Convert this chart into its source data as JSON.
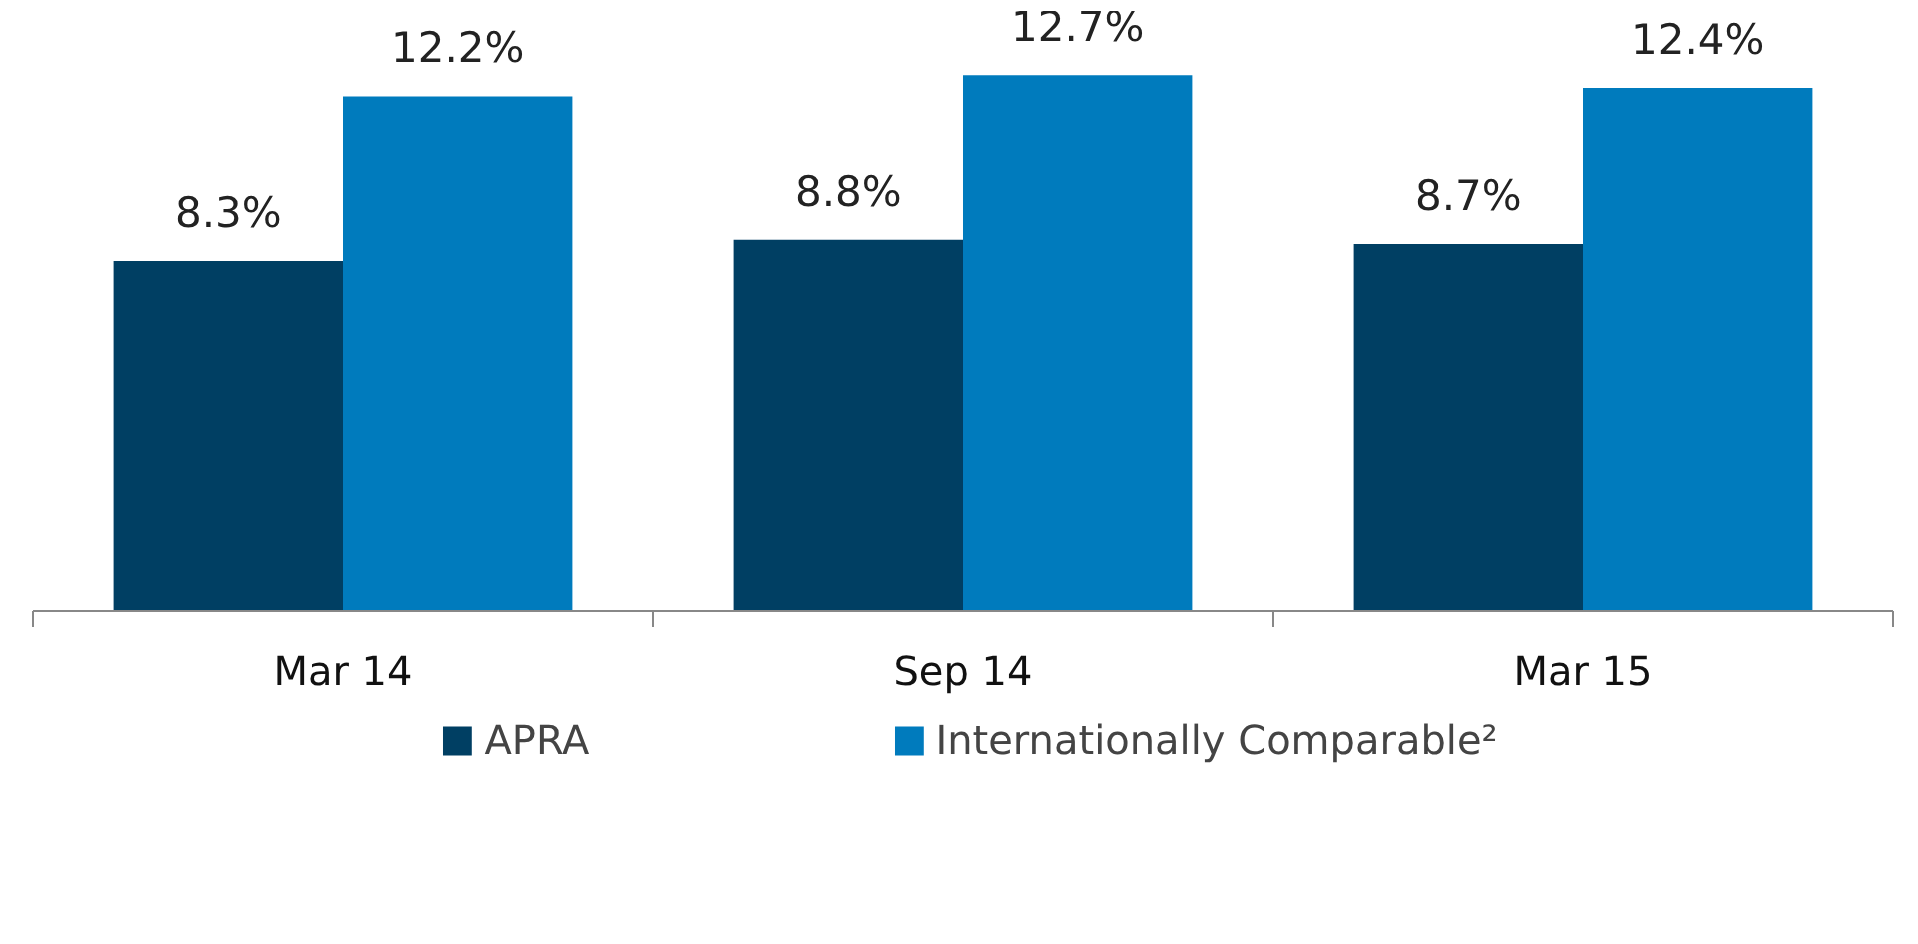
{
  "chart_data": {
    "type": "bar",
    "categories": [
      "Mar 14",
      "Sep 14",
      "Mar 15"
    ],
    "series": [
      {
        "name": "APRA",
        "color": "#003f63",
        "values": [
          8.3,
          8.8,
          8.7
        ],
        "value_labels": [
          "8.3%",
          "8.8%",
          "8.7%"
        ]
      },
      {
        "name": "Internationally Comparable²",
        "color": "#007bbd",
        "values": [
          12.2,
          12.7,
          12.4
        ],
        "value_labels": [
          "12.2%",
          "12.7%",
          "12.4%"
        ]
      }
    ],
    "legend": "bottom"
  }
}
